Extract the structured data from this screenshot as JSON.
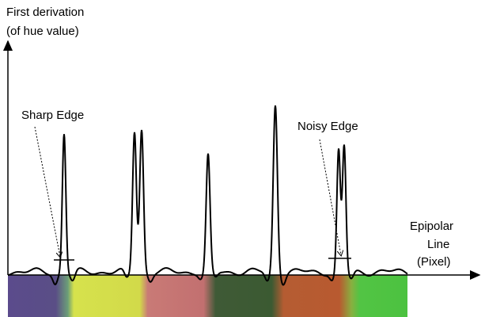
{
  "y_axis": {
    "label_line1": "First derivation",
    "label_line2": "(of hue value)"
  },
  "x_axis": {
    "label_line1": "Epipolar",
    "label_line2": "Line",
    "label_line3": "(Pixel)"
  },
  "annotations": {
    "sharp": "Sharp Edge",
    "noisy": "Noisy Edge"
  }
}
